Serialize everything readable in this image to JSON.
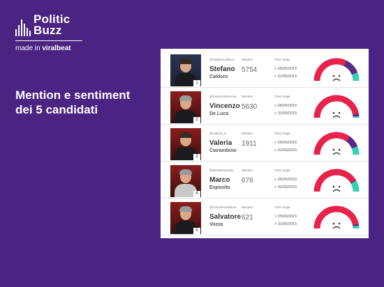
{
  "logo": {
    "line1": "Politic",
    "line2": "Buzz",
    "sub_prefix": "made in ",
    "sub_brand": "viralbeat"
  },
  "headline": {
    "line1": "Mention e sentiment",
    "line2": "dei 5 candidati"
  },
  "table": {
    "mention_header": "Mention",
    "time_header": "Time range",
    "rows": [
      {
        "handle": "@StefanoCaldoro",
        "first": "Stefano",
        "last": "Caldoro",
        "mention": "5754",
        "from": "> 25/05/2015",
        "to": "> 31/05/2015",
        "num": "1",
        "sentiment": {
          "negative": 0.64,
          "neutral": 0.24,
          "positive": 0.12
        }
      },
      {
        "handle": "@VincenzoDeLuca",
        "first": "Vincenzo",
        "last": "De Luca",
        "mention": "5630",
        "from": "> 25/05/2015",
        "to": "> 31/05/2015",
        "num": "2",
        "sentiment": {
          "negative": 0.94,
          "neutral": 0.04,
          "positive": 0.02
        }
      },
      {
        "handle": "@Valeria_ci",
        "first": "Valeria",
        "last": "Ciarambino",
        "mention": "1911",
        "from": "> 25/05/2015",
        "to": "> 31/05/2015",
        "num": "3",
        "sentiment": {
          "negative": 0.7,
          "neutral": 0.18,
          "positive": 0.12
        }
      },
      {
        "handle": "@MeMeEsposito",
        "first": "Marco",
        "last": "Esposito",
        "mention": "676",
        "from": "> 25/05/2015",
        "to": "> 31/05/2015",
        "num": "4",
        "sentiment": {
          "negative": 0.82,
          "neutral": 0.02,
          "positive": 0.16
        }
      },
      {
        "handle": "@VozzaPresidente",
        "first": "Salvatore",
        "last": "Vozza",
        "mention": "621",
        "from": "> 25/05/2015",
        "to": "> 31/05/2015",
        "num": "5",
        "sentiment": {
          "negative": 0.93,
          "neutral": 0.03,
          "positive": 0.04
        }
      }
    ]
  },
  "colors": {
    "background": "#4b2382",
    "negative": "#e8224a",
    "neutral": "#5b2a86",
    "positive": "#35d0b4",
    "face": "#333333"
  },
  "icons": [
    "bars-icon",
    "sad-face-icon"
  ]
}
